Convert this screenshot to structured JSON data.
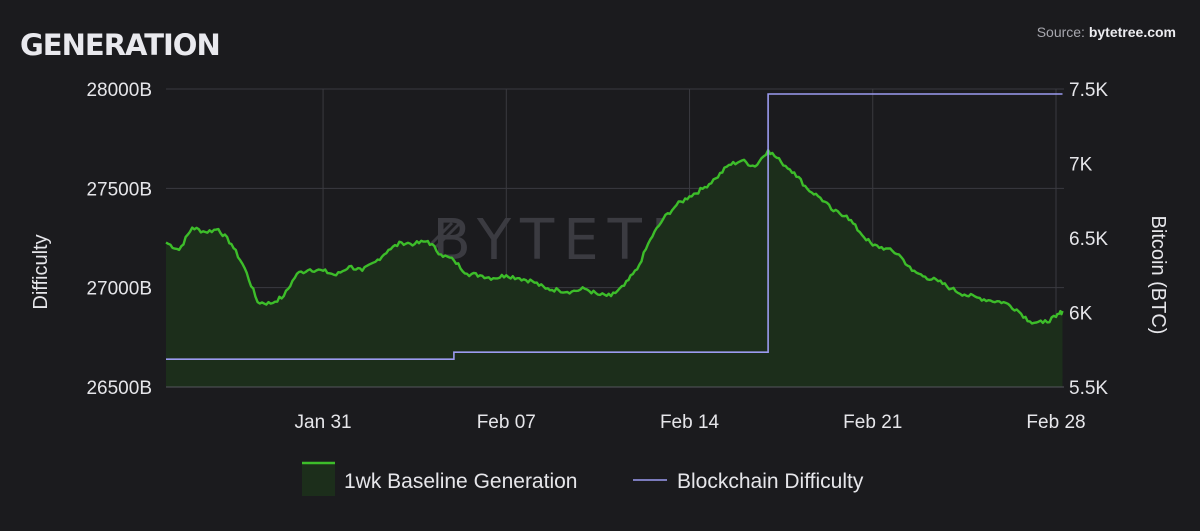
{
  "title": "GENERATION",
  "source": {
    "prefix": "Source: ",
    "name": "bytetree.com"
  },
  "watermark": "BYTETREE",
  "chart_data": {
    "type": "line",
    "title": "GENERATION",
    "x_start": "2021-01-25",
    "x_end": "2021-02-28",
    "x_ticks": [
      {
        "date": "2021-01-31",
        "label": "Jan 31"
      },
      {
        "date": "2021-02-07",
        "label": "Feb 07"
      },
      {
        "date": "2021-02-14",
        "label": "Feb 14"
      },
      {
        "date": "2021-02-21",
        "label": "Feb 21"
      },
      {
        "date": "2021-02-28",
        "label": "Feb 28"
      }
    ],
    "y_left": {
      "label": "Difficulty",
      "range": [
        26500,
        28000
      ],
      "ticks": [
        26500,
        27000,
        27500,
        28000
      ],
      "tick_labels": [
        "26500B",
        "27000B",
        "27500B",
        "28000B"
      ]
    },
    "y_right": {
      "label": "Bitcoin (BTC)",
      "range": [
        5500,
        7500
      ],
      "ticks": [
        5500,
        6000,
        6500,
        7000,
        7500
      ],
      "tick_labels": [
        "5.5K",
        "6K",
        "6.5K",
        "7K",
        "7.5K"
      ]
    },
    "grid": true,
    "legend_position": "bottom",
    "series": [
      {
        "name": "1wk Baseline Generation",
        "axis": "right",
        "color": "#3dbd2a",
        "fill": "#1c2e1b",
        "points": [
          [
            "2021-01-25",
            6470
          ],
          [
            "2021-01-25T12",
            6420
          ],
          [
            "2021-01-26",
            6570
          ],
          [
            "2021-01-26T12",
            6540
          ],
          [
            "2021-01-27",
            6560
          ],
          [
            "2021-01-27T12",
            6460
          ],
          [
            "2021-01-28",
            6300
          ],
          [
            "2021-01-28T12",
            6070
          ],
          [
            "2021-01-29",
            6060
          ],
          [
            "2021-01-29T12",
            6110
          ],
          [
            "2021-01-30",
            6260
          ],
          [
            "2021-01-30T12",
            6290
          ],
          [
            "2021-01-31",
            6280
          ],
          [
            "2021-01-31T12",
            6250
          ],
          [
            "2021-02-01",
            6310
          ],
          [
            "2021-02-01T12",
            6280
          ],
          [
            "2021-02-02",
            6340
          ],
          [
            "2021-02-02T12",
            6420
          ],
          [
            "2021-02-03",
            6470
          ],
          [
            "2021-02-03T12",
            6460
          ],
          [
            "2021-02-04",
            6480
          ],
          [
            "2021-02-04T12",
            6390
          ],
          [
            "2021-02-05",
            6350
          ],
          [
            "2021-02-05T12",
            6260
          ],
          [
            "2021-02-06",
            6250
          ],
          [
            "2021-02-06T12",
            6230
          ],
          [
            "2021-02-07",
            6250
          ],
          [
            "2021-02-07T12",
            6230
          ],
          [
            "2021-02-08",
            6210
          ],
          [
            "2021-02-08T12",
            6160
          ],
          [
            "2021-02-09",
            6150
          ],
          [
            "2021-02-09T12",
            6140
          ],
          [
            "2021-02-10",
            6160
          ],
          [
            "2021-02-10T12",
            6120
          ],
          [
            "2021-02-11",
            6110
          ],
          [
            "2021-02-11T12",
            6180
          ],
          [
            "2021-02-12",
            6290
          ],
          [
            "2021-02-12T12",
            6490
          ],
          [
            "2021-02-13",
            6630
          ],
          [
            "2021-02-13T12",
            6720
          ],
          [
            "2021-02-14",
            6780
          ],
          [
            "2021-02-14T12",
            6830
          ],
          [
            "2021-02-15",
            6900
          ],
          [
            "2021-02-15T12",
            6990
          ],
          [
            "2021-02-16",
            7020
          ],
          [
            "2021-02-16T12",
            6980
          ],
          [
            "2021-02-17",
            7090
          ],
          [
            "2021-02-17T12",
            7010
          ],
          [
            "2021-02-18",
            6940
          ],
          [
            "2021-02-18T12",
            6830
          ],
          [
            "2021-02-19",
            6770
          ],
          [
            "2021-02-19T12",
            6680
          ],
          [
            "2021-02-20",
            6650
          ],
          [
            "2021-02-20T12",
            6540
          ],
          [
            "2021-02-21",
            6450
          ],
          [
            "2021-02-21T12",
            6430
          ],
          [
            "2021-02-22",
            6390
          ],
          [
            "2021-02-22T12",
            6280
          ],
          [
            "2021-02-23",
            6240
          ],
          [
            "2021-02-23T12",
            6210
          ],
          [
            "2021-02-24",
            6160
          ],
          [
            "2021-02-24T12",
            6120
          ],
          [
            "2021-02-25",
            6100
          ],
          [
            "2021-02-25T12",
            6080
          ],
          [
            "2021-02-26",
            6070
          ],
          [
            "2021-02-26T12",
            6020
          ],
          [
            "2021-02-27",
            5940
          ],
          [
            "2021-02-27T12",
            5930
          ],
          [
            "2021-02-28",
            5970
          ],
          [
            "2021-02-28T06",
            6010
          ]
        ]
      },
      {
        "name": "Blockchain Difficulty",
        "axis": "left",
        "color": "#9b9bf0",
        "steps": [
          [
            "2021-01-25",
            26640
          ],
          [
            "2021-02-05",
            26675
          ],
          [
            "2021-02-17",
            27975
          ],
          [
            "2021-02-28T06",
            27975
          ]
        ]
      }
    ]
  }
}
